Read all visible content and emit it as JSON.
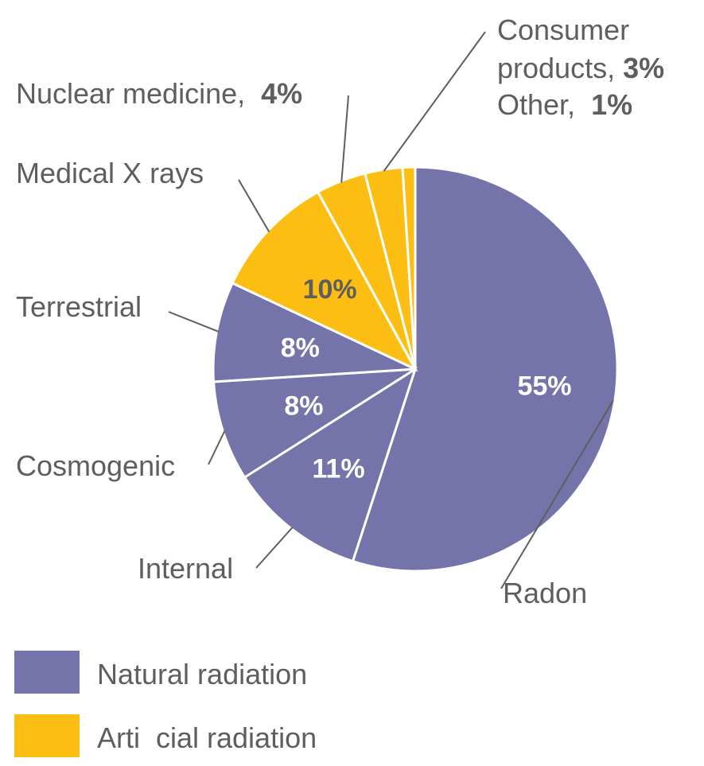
{
  "chart_data": {
    "type": "pie",
    "slices": [
      {
        "label": "Radon",
        "value": 55,
        "pct_text": "55%",
        "group": "natural"
      },
      {
        "label": "Internal",
        "value": 11,
        "pct_text": "11%",
        "group": "natural"
      },
      {
        "label": "Cosmogenic",
        "value": 8,
        "pct_text": "8%",
        "group": "natural"
      },
      {
        "label": "Terrestrial",
        "value": 8,
        "pct_text": "8%",
        "group": "natural"
      },
      {
        "label": "Medical X rays",
        "value": 10,
        "pct_text": "10%",
        "group": "artificial"
      },
      {
        "label": "Nuclear medicine,",
        "value": 4,
        "pct_text": "4%",
        "group": "artificial"
      },
      {
        "label": "Consumer products,",
        "value": 3,
        "pct_text": "3%",
        "group": "artificial"
      },
      {
        "label": "Other,",
        "value": 1,
        "pct_text": "1%",
        "group": "artificial"
      }
    ],
    "legend": [
      {
        "key": "natural",
        "label": "Natural radiation"
      },
      {
        "key": "artificial",
        "label": "Arti  cial radiation"
      }
    ],
    "legend_position": "bottom-left"
  },
  "colors": {
    "natural": "#7474ab",
    "artificial": "#fdbe14",
    "inside_text_natural": "#ffffff",
    "inside_text_artificial": "#5e5e5e"
  }
}
